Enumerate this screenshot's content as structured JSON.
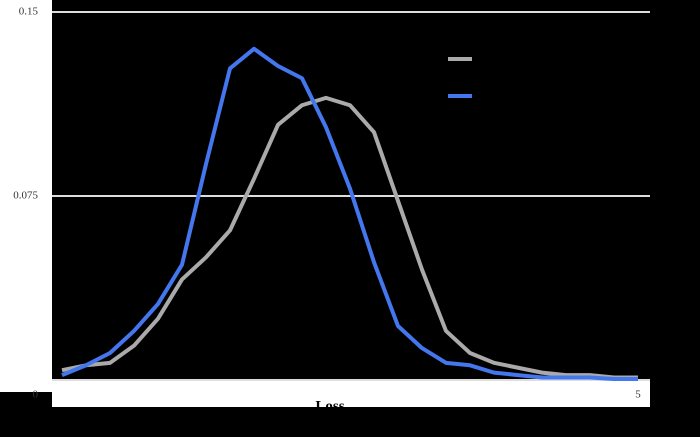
{
  "chart_data": {
    "type": "line",
    "x_label": "Loss",
    "x": [
      0.2,
      0.4,
      0.6,
      0.8,
      1.0,
      1.2,
      1.4,
      1.6,
      1.8,
      2.0,
      2.2,
      2.4,
      2.6,
      2.8,
      3.0,
      3.2,
      3.4,
      3.6,
      3.8,
      4.0,
      4.2,
      4.4,
      4.6,
      4.8,
      5.0
    ],
    "series": [
      {
        "color": "#aaaaaa",
        "values": [
          0.004,
          0.006,
          0.007,
          0.014,
          0.025,
          0.041,
          0.05,
          0.061,
          0.082,
          0.104,
          0.112,
          0.115,
          0.112,
          0.101,
          0.073,
          0.045,
          0.02,
          0.011,
          0.007,
          0.005,
          0.003,
          0.002,
          0.002,
          0.001,
          0.001
        ]
      },
      {
        "color": "#4477ee",
        "values": [
          0.002,
          0.006,
          0.011,
          0.02,
          0.031,
          0.047,
          0.088,
          0.127,
          0.135,
          0.128,
          0.123,
          0.103,
          0.078,
          0.048,
          0.022,
          0.013,
          0.007,
          0.006,
          0.003,
          0.002,
          0.001,
          0.001,
          0.001,
          0.0004,
          0.0004
        ]
      }
    ],
    "xlim": [
      0.2,
      5
    ],
    "xticks": [
      5
    ],
    "ylim": [
      0,
      0.15
    ],
    "yticks": [
      0,
      0.075,
      0.15
    ],
    "grid": true
  }
}
